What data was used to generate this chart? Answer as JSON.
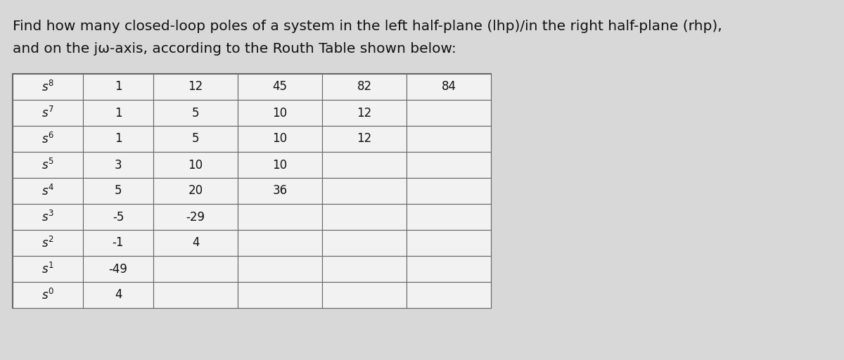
{
  "title_line1": "Find how many closed-loop poles of a system in the left half-plane (lhp)/in the right half-plane (rhp),",
  "title_line2": "and on the jω-axis, according to the Routh Table shown below:",
  "row_labels": [
    "$s^8$",
    "$s^7$",
    "$s^6$",
    "$s^5$",
    "$s^4$",
    "$s^3$",
    "$s^2$",
    "$s^1$",
    "$s^0$"
  ],
  "table_data": [
    [
      "1",
      "12",
      "45",
      "82",
      "84"
    ],
    [
      "1",
      "5",
      "10",
      "12",
      ""
    ],
    [
      "1",
      "5",
      "10",
      "12",
      ""
    ],
    [
      "3",
      "10",
      "10",
      "",
      ""
    ],
    [
      "5",
      "20",
      "36",
      "",
      ""
    ],
    [
      "-5",
      "-29",
      "",
      "",
      ""
    ],
    [
      "-1",
      "4",
      "",
      "",
      ""
    ],
    [
      "-49",
      "",
      "",
      "",
      ""
    ],
    [
      "4",
      "",
      "",
      "",
      ""
    ]
  ],
  "cell_bg": "#f2f2f2",
  "border_color": "#666666",
  "text_color": "#111111",
  "title_color": "#111111",
  "fig_bg": "#d8d8d8",
  "title_fontsize": 14.5,
  "cell_fontsize": 12,
  "label_fontsize": 12
}
